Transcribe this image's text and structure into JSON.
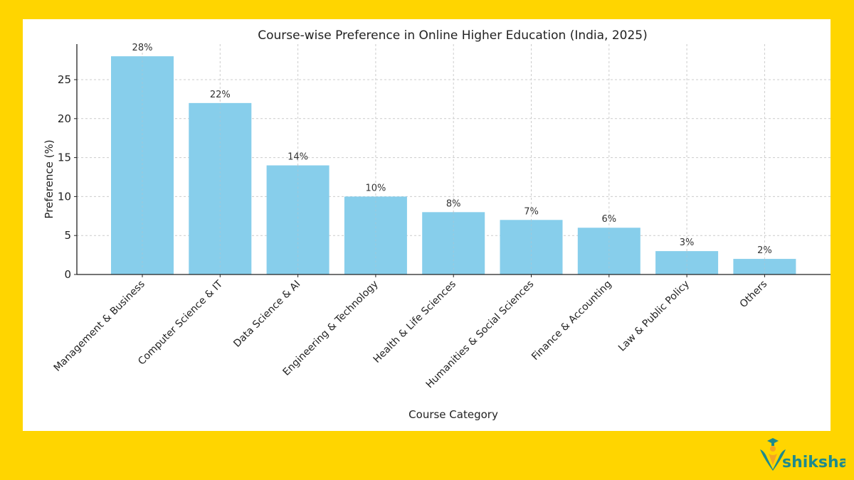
{
  "colors": {
    "background": "#FFD500",
    "panel": "#ffffff",
    "bar": "#87CEEB",
    "text": "#222222",
    "logo": "#1E8A8C"
  },
  "logo": {
    "text": "shiksha"
  },
  "chart_data": {
    "type": "bar",
    "title": "Course-wise Preference in Online Higher Education (India, 2025)",
    "xlabel": "Course Category",
    "ylabel": "Preference (%)",
    "ylim": [
      0,
      29.5
    ],
    "yticks": [
      0,
      5,
      10,
      15,
      20,
      25
    ],
    "grid": true,
    "legend": null,
    "categories": [
      "Management & Business",
      "Computer Science & IT",
      "Data Science & AI",
      "Engineering & Technology",
      "Health & Life Sciences",
      "Humanities & Social Sciences",
      "Finance & Accounting",
      "Law & Public Policy",
      "Others"
    ],
    "values": [
      28,
      22,
      14,
      10,
      8,
      7,
      6,
      3,
      2
    ],
    "data_labels": [
      "28%",
      "22%",
      "14%",
      "10%",
      "8%",
      "7%",
      "6%",
      "3%",
      "2%"
    ]
  }
}
